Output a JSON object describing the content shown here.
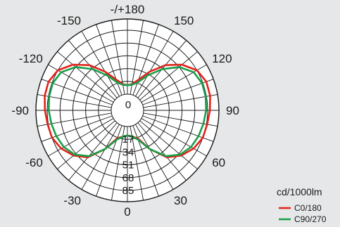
{
  "chart_data": {
    "type": "polar",
    "title": "",
    "unit": "cd/1000lm",
    "angle_labels": [
      {
        "deg": 180,
        "text": "-/+180"
      },
      {
        "deg": 150,
        "text": "150"
      },
      {
        "deg": 120,
        "text": "120"
      },
      {
        "deg": 90,
        "text": "90"
      },
      {
        "deg": 60,
        "text": "60"
      },
      {
        "deg": 30,
        "text": "30"
      },
      {
        "deg": 0,
        "text": "0"
      },
      {
        "deg": -30,
        "text": "-30"
      },
      {
        "deg": -60,
        "text": "-60"
      },
      {
        "deg": -90,
        "text": "-90"
      },
      {
        "deg": -120,
        "text": "-120"
      },
      {
        "deg": -150,
        "text": "-150"
      }
    ],
    "radial_ticks": [
      0,
      17,
      34,
      51,
      68,
      85
    ],
    "radial_tick_labels": [
      "0",
      "17",
      "34",
      "51",
      "68",
      "85"
    ],
    "rmax": 100,
    "angle_step": 10,
    "grid": true,
    "legend_position": "bottom-right",
    "series": [
      {
        "name": "C0/180",
        "color": "#e2231a",
        "angles": [
          0,
          10,
          20,
          30,
          40,
          50,
          60,
          70,
          80,
          90,
          100,
          110,
          120,
          130,
          140,
          150,
          160,
          170,
          180
        ],
        "values": [
          12,
          14,
          18,
          38,
          60,
          72,
          80,
          85,
          86,
          88,
          90,
          90,
          85,
          73,
          57,
          38,
          22,
          14,
          12
        ]
      },
      {
        "name": "C90/270",
        "color": "#1a9e4a",
        "angles": [
          0,
          10,
          20,
          30,
          40,
          50,
          60,
          70,
          80,
          90,
          100,
          110,
          120,
          130,
          140,
          150,
          160,
          170,
          180
        ],
        "values": [
          12,
          14,
          20,
          38,
          58,
          70,
          76,
          79,
          81,
          83,
          84,
          84,
          80,
          68,
          50,
          32,
          18,
          13,
          12
        ]
      }
    ]
  }
}
